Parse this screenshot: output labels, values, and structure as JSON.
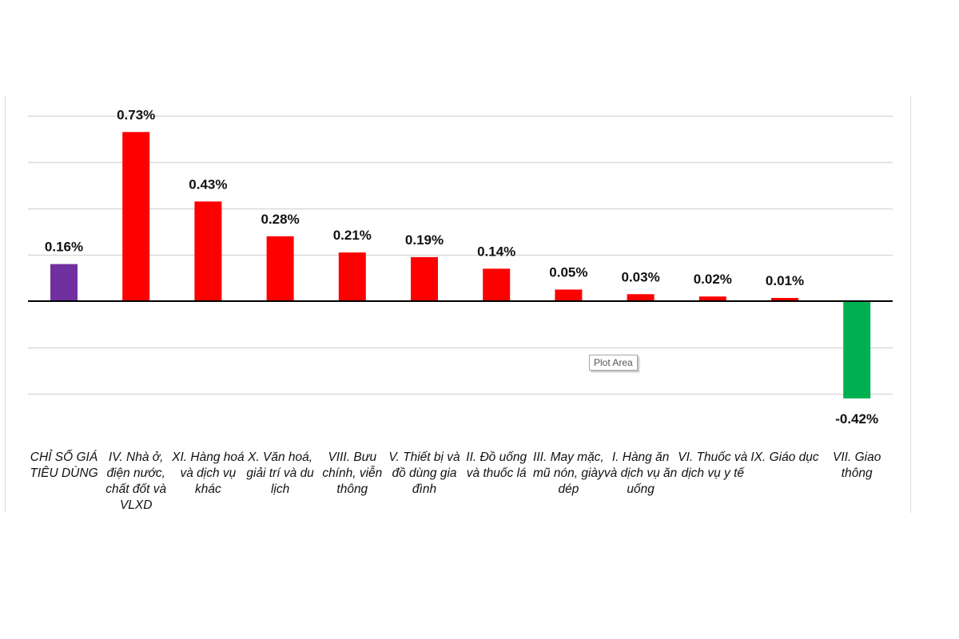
{
  "chart_data": {
    "type": "bar",
    "categories": [
      "CHỈ SỐ GIÁ TIÊU DÙNG",
      "IV. Nhà ở, điện nước, chất đốt và VLXD",
      "XI. Hàng hoá và dịch vụ khác",
      "X. Văn hoá, giải trí và du lịch",
      "VIII. Bưu chính, viễn thông",
      "V. Thiết bị và đồ dùng gia đình",
      "II. Đồ uống và thuốc lá",
      "III. May mặc, mũ nón, giày dép",
      "I. Hàng ăn và dịch vụ ăn uống",
      "VI. Thuốc và dịch vụ y tế",
      "IX. Giáo dục",
      "VII. Giao thông"
    ],
    "values": [
      0.16,
      0.73,
      0.43,
      0.28,
      0.21,
      0.19,
      0.14,
      0.05,
      0.03,
      0.02,
      0.01,
      -0.42
    ],
    "data_labels": [
      "0.16%",
      "0.73%",
      "0.43%",
      "0.28%",
      "0.21%",
      "0.19%",
      "0.14%",
      "0.05%",
      "0.03%",
      "0.02%",
      "0.01%",
      "-0.42%"
    ],
    "colors": [
      "#7030a0",
      "#ff0000",
      "#ff0000",
      "#ff0000",
      "#ff0000",
      "#ff0000",
      "#ff0000",
      "#ff0000",
      "#ff0000",
      "#ff0000",
      "#ff0000",
      "#00b050"
    ],
    "gridlines": true,
    "gridline_color": "#d9d9d9",
    "axis_color": "#000000",
    "title": "",
    "xlabel": "",
    "ylabel": ""
  },
  "tooltip": {
    "text": "Plot Area"
  }
}
